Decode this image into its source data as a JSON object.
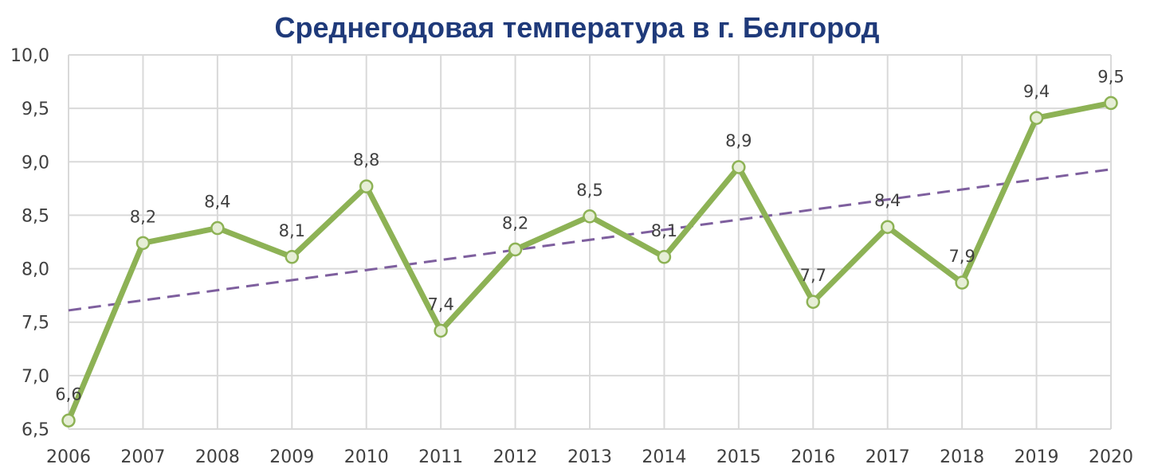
{
  "chart_data": {
    "type": "line",
    "title": "Среднегодовая температура в г. Белгород",
    "xlabel": "",
    "ylabel": "",
    "categories": [
      "2006",
      "2007",
      "2008",
      "2009",
      "2010",
      "2011",
      "2012",
      "2013",
      "2014",
      "2015",
      "2016",
      "2017",
      "2018",
      "2019",
      "2020"
    ],
    "series": [
      {
        "values": [
          6.58,
          8.24,
          8.38,
          8.11,
          8.77,
          7.42,
          8.18,
          8.49,
          8.11,
          8.95,
          7.69,
          8.39,
          7.87,
          9.41,
          9.55
        ],
        "labels": [
          "6,6",
          "8,2",
          "8,4",
          "8,1",
          "8,8",
          "7,4",
          "8,2",
          "8,5",
          "8,1",
          "8,9",
          "7,7",
          "8,4",
          "7,9",
          "9,4",
          "9,5"
        ],
        "color": "#8db255",
        "marker_fill": "#e6eed6"
      }
    ],
    "trendline": {
      "type": "linear",
      "start": 7.61,
      "end": 8.93,
      "color": "#7e5f9e",
      "style": "dashed"
    },
    "ylim": [
      6.5,
      10.0
    ],
    "yticks": [
      "6,5",
      "7,0",
      "7,5",
      "8,0",
      "8,5",
      "9,0",
      "9,5",
      "10,0"
    ],
    "grid": true,
    "legend": "none"
  }
}
